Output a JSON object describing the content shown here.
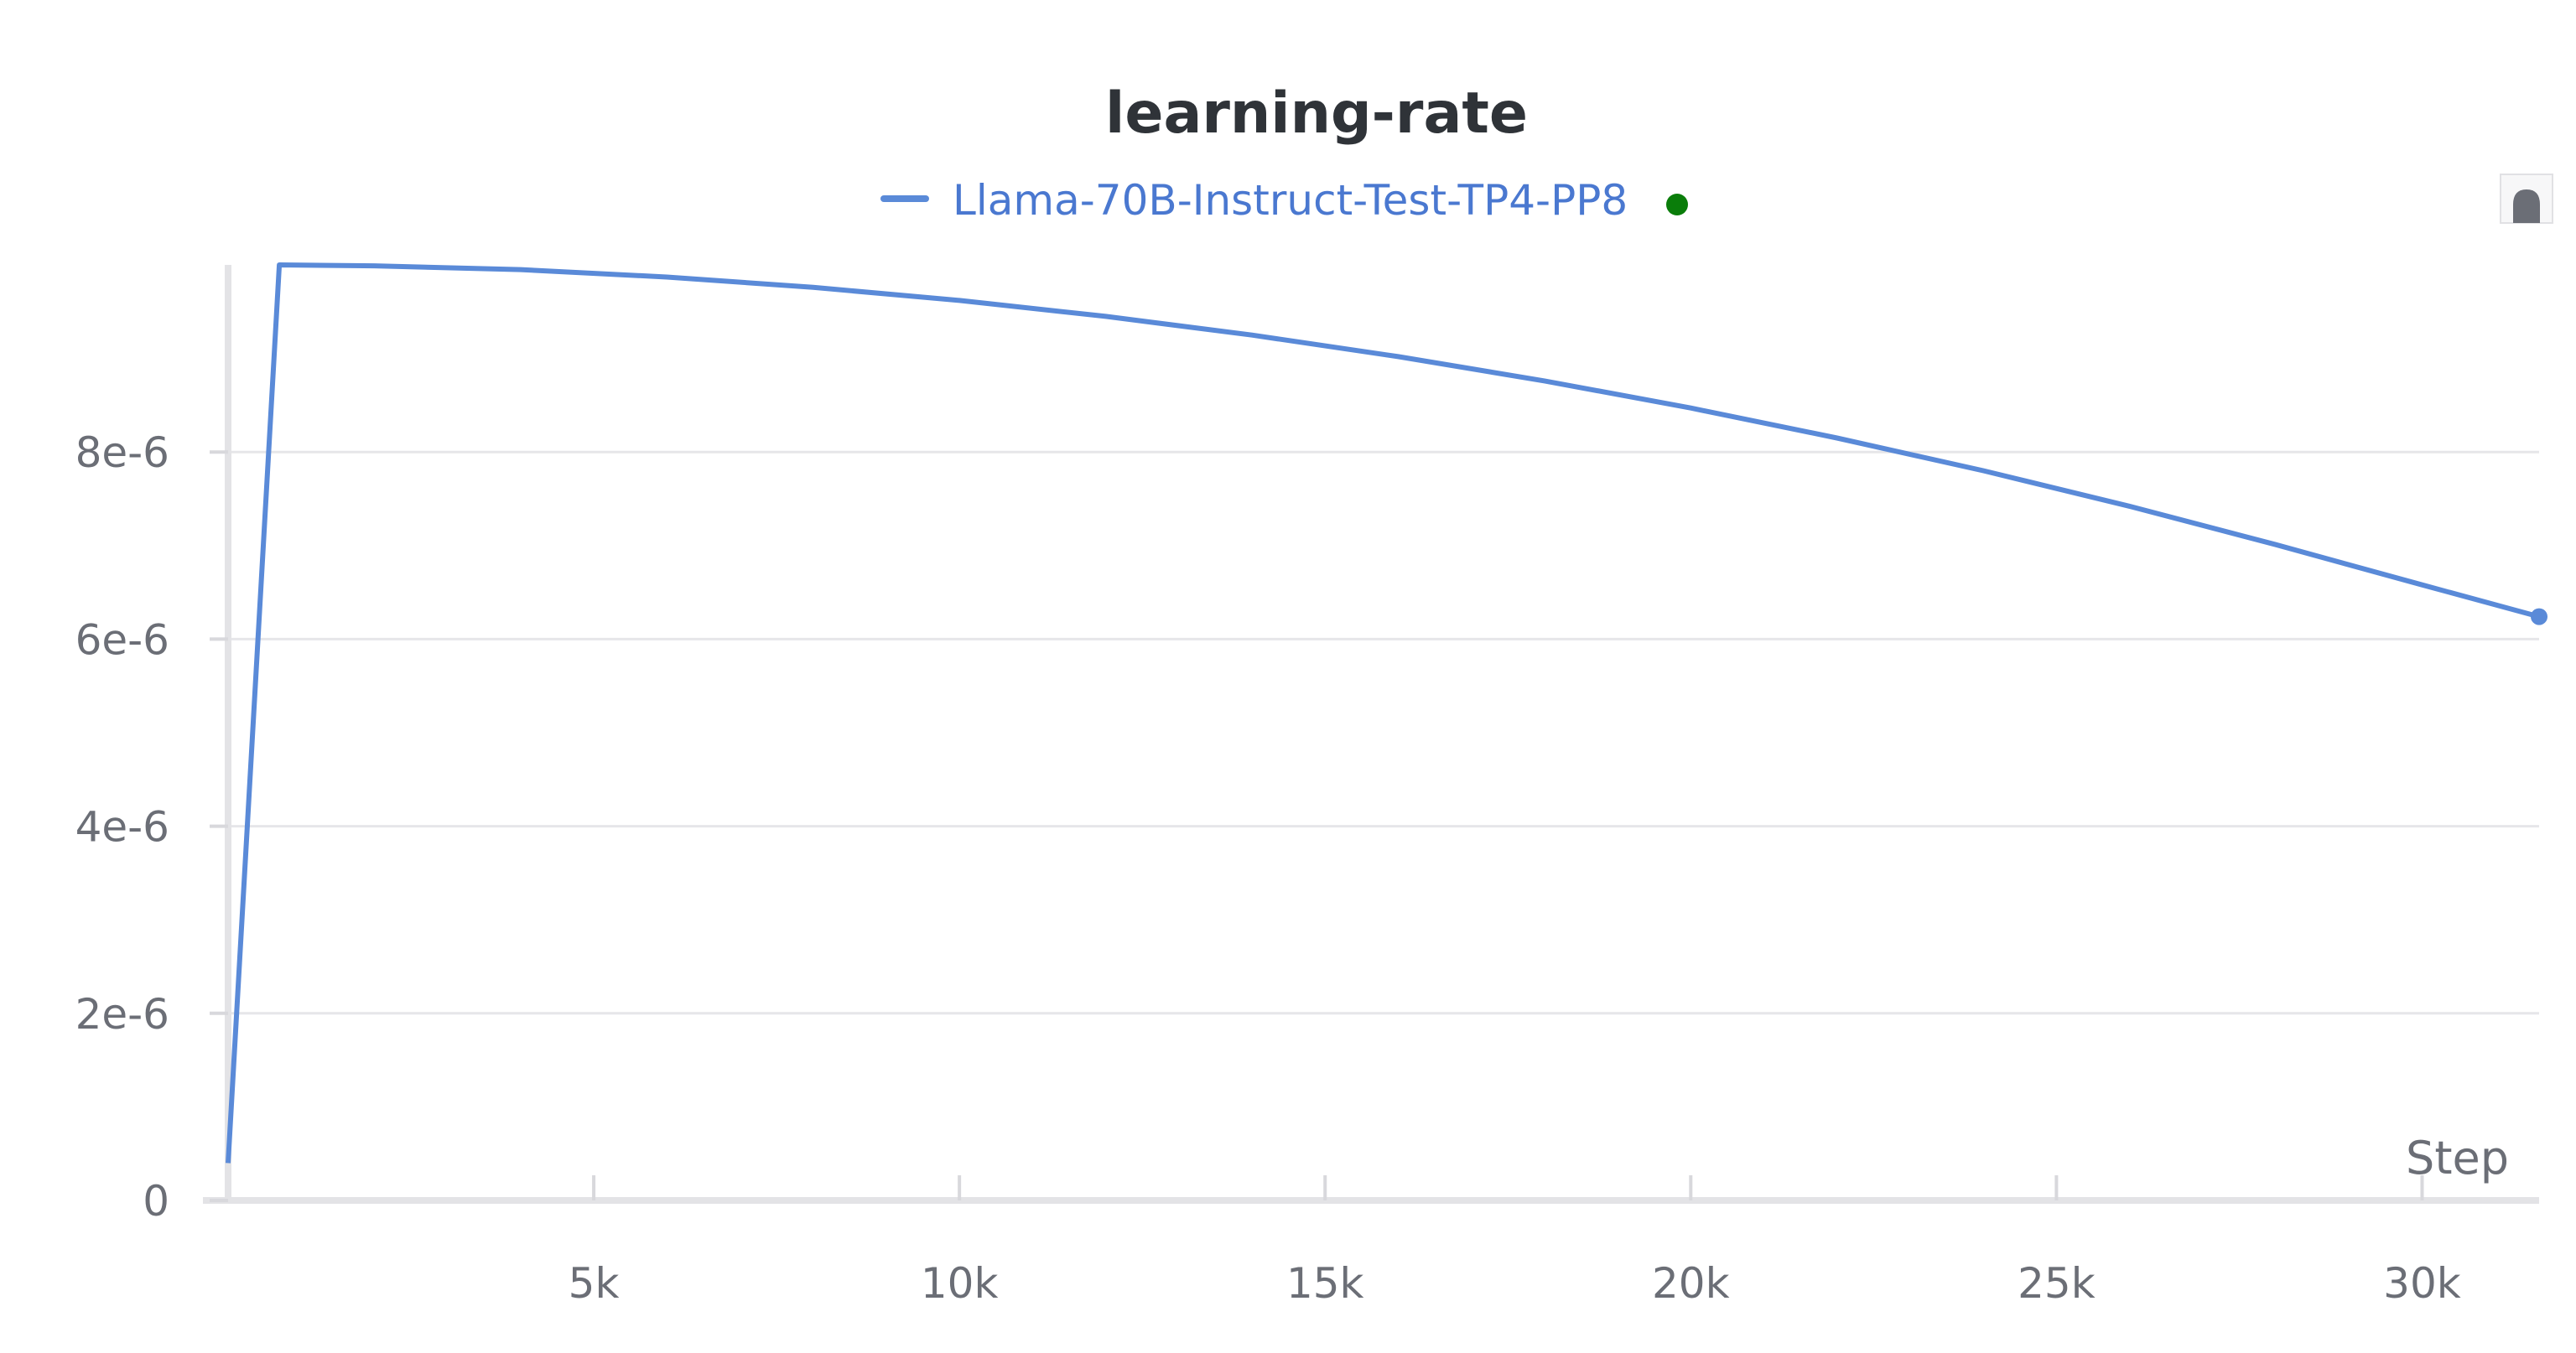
{
  "chart_data": {
    "type": "line",
    "title": "learning-rate",
    "xlabel": "Step",
    "ylabel": "",
    "xlim": [
      0,
      31600
    ],
    "ylim": [
      0,
      1e-05
    ],
    "x_ticks": [
      5000,
      10000,
      15000,
      20000,
      25000,
      30000
    ],
    "x_tick_labels": [
      "5k",
      "10k",
      "15k",
      "20k",
      "25k",
      "30k"
    ],
    "y_ticks": [
      0,
      2e-06,
      4e-06,
      6e-06,
      8e-06
    ],
    "y_tick_labels": [
      "0",
      "2e-6",
      "4e-6",
      "6e-6",
      "8e-6"
    ],
    "grid": true,
    "legend_placement": "top-center",
    "series": [
      {
        "name": "Llama-70B-Instruct-Test-TP4-PP8",
        "color": "#5a8ad8",
        "status_color": "#0a7d0a",
        "x": [
          0,
          700,
          2000,
          4000,
          6000,
          8000,
          10000,
          12000,
          14000,
          16000,
          18000,
          20000,
          22000,
          24000,
          26000,
          28000,
          30000,
          31600
        ],
        "y": [
          4e-07,
          1e-05,
          9.99e-06,
          9.95e-06,
          9.87e-06,
          9.76e-06,
          9.62e-06,
          9.45e-06,
          9.25e-06,
          9.02e-06,
          8.76e-06,
          8.47e-06,
          8.15e-06,
          7.8e-06,
          7.42e-06,
          7.01e-06,
          6.58e-06,
          6.24e-06
        ]
      }
    ]
  }
}
